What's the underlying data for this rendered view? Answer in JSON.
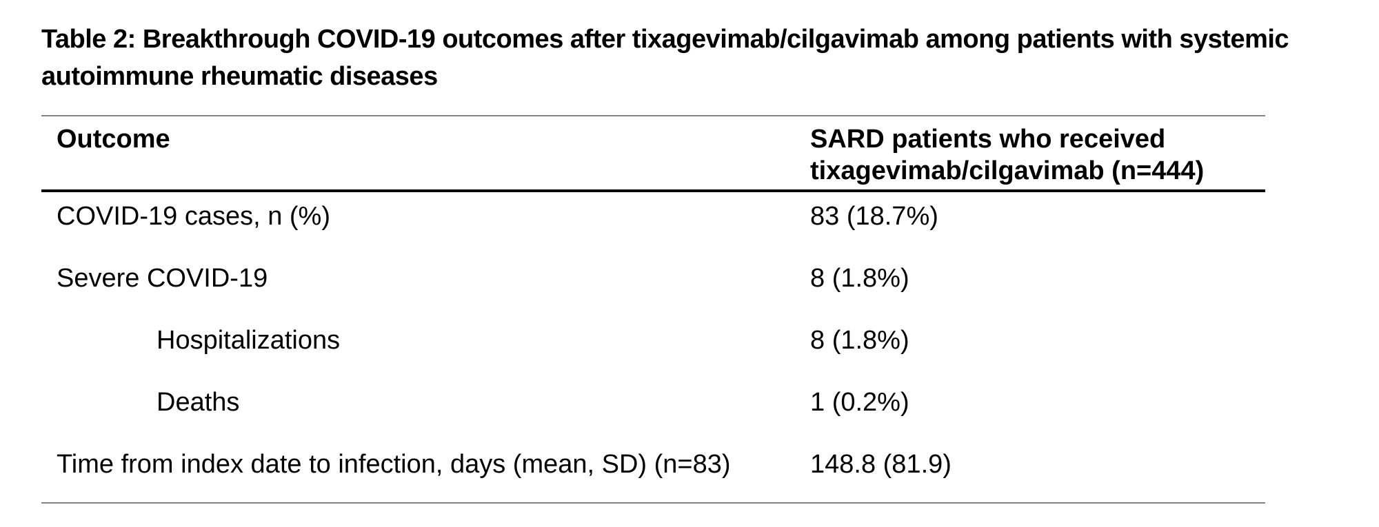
{
  "title": {
    "line1": "Table 2: Breakthrough COVID-19 outcomes after tixagevimab/cilgavimab among patients with systemic",
    "line2": "autoimmune rheumatic diseases"
  },
  "table": {
    "header": {
      "outcome": "Outcome",
      "group_line1": "SARD patients who received",
      "group_line2": "tixagevimab/cilgavimab (n=444)"
    },
    "rows": [
      {
        "label": "COVID-19 cases, n (%)",
        "value": "83 (18.7%)",
        "indent": false
      },
      {
        "label": "Severe COVID-19",
        "value": "8 (1.8%)",
        "indent": false
      },
      {
        "label": "Hospitalizations",
        "value": "8 (1.8%)",
        "indent": true
      },
      {
        "label": "Deaths",
        "value": "1 (0.2%)",
        "indent": true
      },
      {
        "label": "Time from index date to infection, days (mean, SD) (n=83)",
        "value": "148.8 (81.9)",
        "indent": false
      }
    ]
  },
  "colors": {
    "background": "#ffffff",
    "text": "#000000",
    "rule_gray": "#828282",
    "rule_black": "#000000"
  }
}
